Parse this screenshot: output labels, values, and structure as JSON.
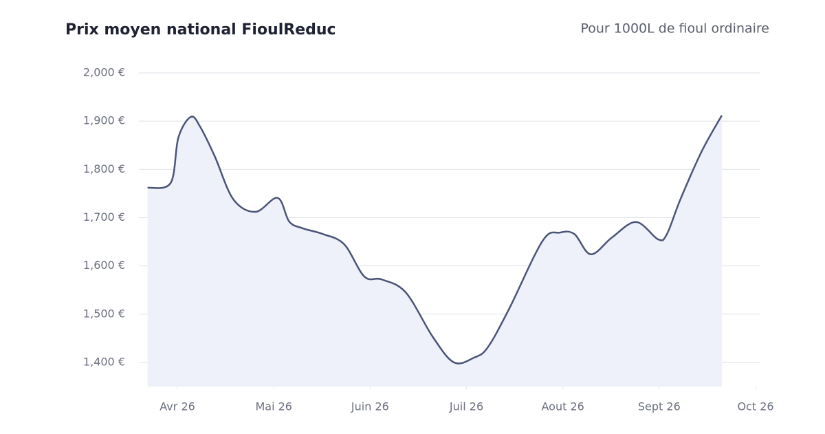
{
  "chart_data": {
    "type": "area",
    "title": "Prix moyen national FioulReduc",
    "subtitle": "Pour 1000L de fioul ordinaire",
    "x": [
      -0.31,
      -0.07,
      0.01,
      0.14,
      0.24,
      0.39,
      0.58,
      0.81,
      1.04,
      1.16,
      1.3,
      1.51,
      1.73,
      1.94,
      2.12,
      2.37,
      2.65,
      2.87,
      3.08,
      3.22,
      3.44,
      3.79,
      3.97,
      4.12,
      4.29,
      4.51,
      4.76,
      4.99,
      5.08,
      5.22,
      5.44,
      5.65
    ],
    "values": [
      1762,
      1772,
      1866,
      1909,
      1887,
      1826,
      1738,
      1712,
      1741,
      1692,
      1678,
      1666,
      1645,
      1578,
      1572,
      1545,
      1453,
      1400,
      1410,
      1431,
      1510,
      1652,
      1669,
      1666,
      1624,
      1659,
      1691,
      1655,
      1666,
      1738,
      1837,
      1912
    ],
    "color": "#4a5478",
    "fill_color": "#eff1fa",
    "xlim": [
      -0.4,
      6.05
    ],
    "xticks": [
      {
        "value": 0,
        "label": "Avr 26"
      },
      {
        "value": 1,
        "label": "Mai 26"
      },
      {
        "value": 2,
        "label": "Juin 26"
      },
      {
        "value": 3,
        "label": "Juil 26"
      },
      {
        "value": 4,
        "label": "Aout 26"
      },
      {
        "value": 5,
        "label": "Sept 26"
      },
      {
        "value": 6,
        "label": "Oct 26"
      }
    ],
    "ylim": [
      1350,
      2000
    ],
    "yticks": [
      {
        "value": 1400,
        "label": "1,400 €"
      },
      {
        "value": 1500,
        "label": "1,500 €"
      },
      {
        "value": 1600,
        "label": "1,600 €"
      },
      {
        "value": 1700,
        "label": "1,700 €"
      },
      {
        "value": 1800,
        "label": "1,800 €"
      },
      {
        "value": 1900,
        "label": "1,900 €"
      },
      {
        "value": 2000,
        "label": "2,000 €"
      }
    ],
    "grid": true
  }
}
